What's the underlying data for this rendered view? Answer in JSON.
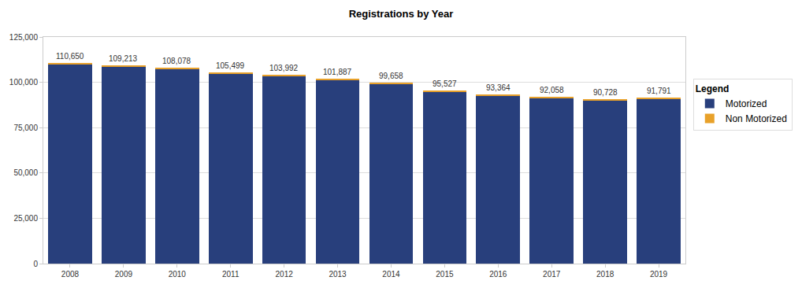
{
  "chart_data": {
    "type": "bar",
    "title": "Registrations by Year",
    "categories": [
      "2008",
      "2009",
      "2010",
      "2011",
      "2012",
      "2013",
      "2014",
      "2015",
      "2016",
      "2017",
      "2018",
      "2019"
    ],
    "series": [
      {
        "name": "Motorized",
        "color": "#283f7c",
        "values": [
          109950,
          108513,
          107328,
          104749,
          103242,
          101137,
          98858,
          94727,
          92564,
          91208,
          89828,
          90691
        ]
      },
      {
        "name": "Non Motorized",
        "color": "#e8a12a",
        "values": [
          700,
          700,
          750,
          750,
          750,
          750,
          800,
          800,
          800,
          850,
          900,
          1100
        ]
      }
    ],
    "totals": [
      110650,
      109213,
      108078,
      105499,
      103992,
      101887,
      99658,
      95527,
      93364,
      92058,
      90728,
      91791
    ],
    "total_labels": [
      "110,650",
      "109,213",
      "108,078",
      "105,499",
      "103,992",
      "101,887",
      "99,658",
      "95,527",
      "93,364",
      "92,058",
      "90,728",
      "91,791"
    ],
    "stacked": true,
    "ylim": [
      0,
      125000
    ],
    "yticks": [
      {
        "value": 0,
        "label": "0"
      },
      {
        "value": 25000,
        "label": "25,000"
      },
      {
        "value": 50000,
        "label": "50,000"
      },
      {
        "value": 75000,
        "label": "75,000"
      },
      {
        "value": 100000,
        "label": "100,000"
      },
      {
        "value": 125000,
        "label": "125,000"
      }
    ],
    "grid": true,
    "legend": "right",
    "legend_title": "Legend"
  }
}
